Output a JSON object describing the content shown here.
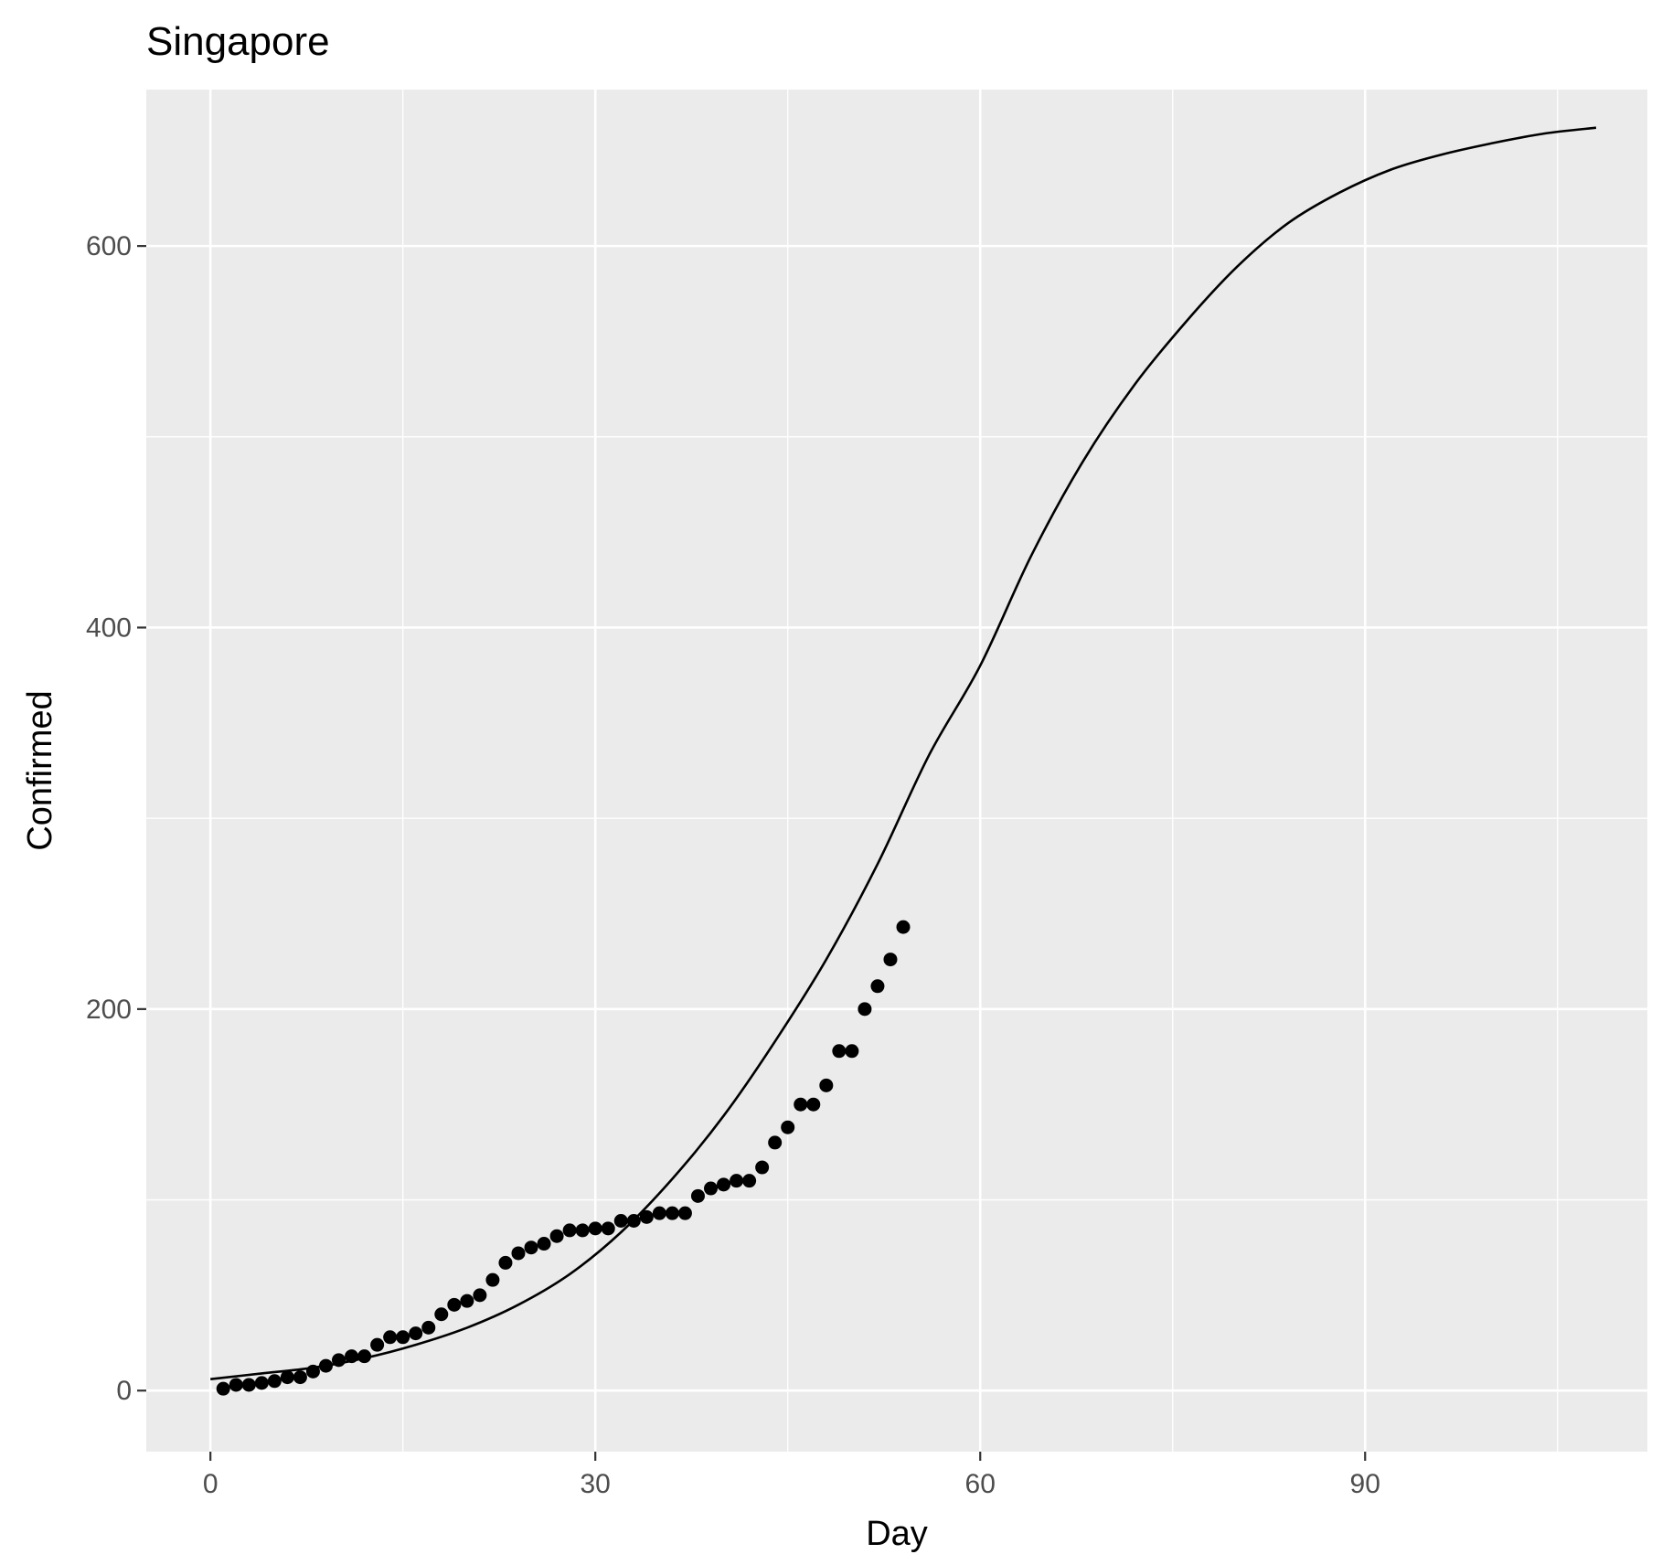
{
  "chart_data": {
    "type": "scatter",
    "title": "Singapore",
    "xlabel": "Day",
    "ylabel": "Confirmed",
    "xlim": [
      -5,
      112
    ],
    "ylim": [
      -32,
      682
    ],
    "x_ticks": [
      0,
      30,
      60,
      90
    ],
    "x_tick_labels": [
      "0",
      "30",
      "60",
      "90"
    ],
    "y_ticks": [
      0,
      200,
      400,
      600
    ],
    "y_tick_labels": [
      "0",
      "200",
      "400",
      "600"
    ],
    "grid": true,
    "legend": "none",
    "colors": {
      "panel": "#ebebeb",
      "grid": "#ffffff",
      "points": "#000000",
      "curve": "#000000"
    },
    "series": [
      {
        "kind": "points",
        "x": [
          1,
          2,
          3,
          4,
          5,
          6,
          7,
          8,
          9,
          10,
          11,
          12,
          13,
          14,
          15,
          16,
          17,
          18,
          19,
          20,
          21,
          22,
          23,
          24,
          25,
          26,
          27,
          28,
          29,
          30,
          31,
          32,
          33,
          34,
          35,
          36,
          37,
          38,
          39,
          40,
          41,
          42,
          43,
          44,
          45,
          46,
          47,
          48,
          49,
          50,
          51,
          52,
          53,
          54
        ],
        "y": [
          1,
          3,
          3,
          4,
          5,
          7,
          7,
          10,
          13,
          16,
          18,
          18,
          24,
          28,
          28,
          30,
          33,
          40,
          45,
          47,
          50,
          58,
          67,
          72,
          75,
          77,
          81,
          84,
          84,
          85,
          85,
          89,
          89,
          91,
          93,
          93,
          93,
          102,
          106,
          108,
          110,
          110,
          117,
          130,
          138,
          150,
          150,
          160,
          178,
          178,
          200,
          212,
          226,
          243
        ]
      },
      {
        "kind": "line",
        "x": [
          0,
          4,
          8,
          12,
          16,
          20,
          24,
          28,
          32,
          36,
          40,
          44,
          48,
          52,
          56,
          60,
          64,
          68,
          72,
          76,
          80,
          84,
          88,
          92,
          96,
          100,
          104,
          108
        ],
        "y": [
          6,
          9,
          12,
          17,
          24,
          33,
          45,
          61,
          83,
          111,
          144,
          183,
          226,
          276,
          333,
          380,
          438,
          487,
          527,
          560,
          589,
          612,
          628,
          640,
          648,
          654,
          659,
          662
        ]
      }
    ]
  }
}
